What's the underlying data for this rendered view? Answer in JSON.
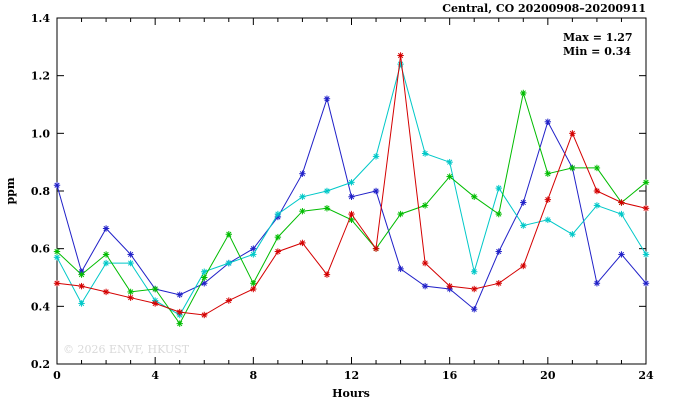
{
  "chart_data": {
    "type": "line",
    "title": "Central, CO 20200908–20200911",
    "xlabel": "Hours",
    "ylabel": "ppm",
    "annotations": [
      "Max = 1.27",
      "Min = 0.34"
    ],
    "watermark": "© 2026 ENVF, HKUST",
    "xlim": [
      0,
      24
    ],
    "ylim": [
      0.2,
      1.4
    ],
    "xticks": [
      0,
      4,
      8,
      12,
      16,
      20,
      24
    ],
    "yticks": [
      0.2,
      0.4,
      0.6,
      0.8,
      1.0,
      1.2,
      1.4
    ],
    "grid": false,
    "legend": "none",
    "x": [
      0,
      1,
      2,
      3,
      4,
      5,
      6,
      7,
      8,
      9,
      10,
      11,
      12,
      13,
      14,
      15,
      16,
      17,
      18,
      19,
      20,
      21,
      22,
      23,
      24
    ],
    "series": [
      {
        "name": "blue",
        "color": "#2020c8",
        "values": [
          0.82,
          0.52,
          0.67,
          0.58,
          0.46,
          0.44,
          0.48,
          0.55,
          0.6,
          0.71,
          0.86,
          1.12,
          0.78,
          0.8,
          0.53,
          0.47,
          0.46,
          0.39,
          0.59,
          0.76,
          1.04,
          0.88,
          0.48,
          0.58,
          0.48
        ]
      },
      {
        "name": "cyan",
        "color": "#00c8c8",
        "values": [
          0.57,
          0.41,
          0.55,
          0.55,
          0.42,
          0.37,
          0.52,
          0.55,
          0.58,
          0.72,
          0.78,
          0.8,
          0.83,
          0.92,
          1.24,
          0.93,
          0.9,
          0.52,
          0.81,
          0.68,
          0.7,
          0.65,
          0.75,
          0.72,
          0.58
        ]
      },
      {
        "name": "green",
        "color": "#00bc00",
        "values": [
          0.59,
          0.51,
          0.58,
          0.45,
          0.46,
          0.34,
          0.5,
          0.65,
          0.48,
          0.64,
          0.73,
          0.74,
          0.7,
          0.6,
          0.72,
          0.75,
          0.85,
          0.78,
          0.72,
          1.14,
          0.86,
          0.88,
          0.88,
          0.76,
          0.83
        ]
      },
      {
        "name": "red",
        "color": "#d40000",
        "values": [
          0.48,
          0.47,
          0.45,
          0.43,
          0.41,
          0.38,
          0.37,
          0.42,
          0.46,
          0.59,
          0.62,
          0.51,
          0.72,
          0.6,
          1.27,
          0.55,
          0.47,
          0.46,
          0.48,
          0.54,
          0.77,
          1.0,
          0.8,
          0.76,
          0.74
        ]
      }
    ]
  }
}
